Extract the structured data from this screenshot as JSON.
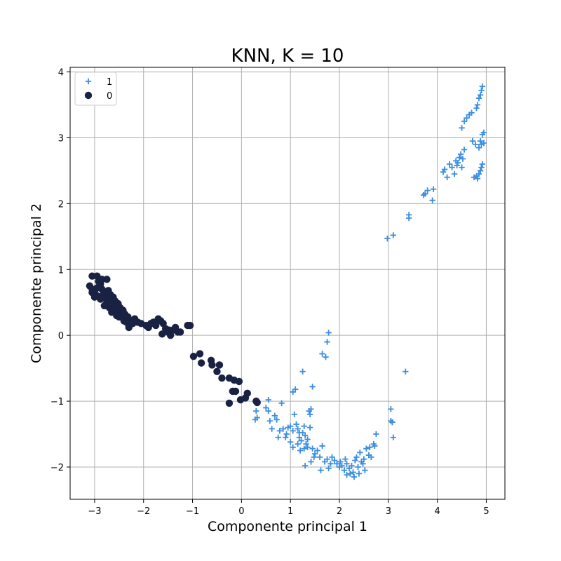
{
  "chart_data": {
    "type": "scatter",
    "title": "KNN, K = 10",
    "xlabel": "Componente principal 1",
    "ylabel": "Componente principal 2",
    "xlim": [
      -3.5,
      5.38
    ],
    "ylim": [
      -2.49,
      4.07
    ],
    "xticks": [
      -3,
      -2,
      -1,
      0,
      1,
      2,
      3,
      4,
      5
    ],
    "yticks": [
      -2,
      -1,
      0,
      1,
      2,
      3,
      4
    ],
    "grid": true,
    "legend_position": "top-left",
    "series": [
      {
        "name": "1",
        "marker": "plus",
        "color": "#3b8ee0",
        "points": [
          [
            1.78,
            0.04
          ],
          [
            1.75,
            -0.1
          ],
          [
            1.65,
            -0.28
          ],
          [
            1.72,
            -0.33
          ],
          [
            1.25,
            -0.55
          ],
          [
            1.45,
            -0.78
          ],
          [
            3.35,
            -0.55
          ],
          [
            1.1,
            -0.82
          ],
          [
            1.05,
            -0.86
          ],
          [
            0.55,
            -0.98
          ],
          [
            0.82,
            -1.03
          ],
          [
            0.3,
            -1.15
          ],
          [
            0.32,
            -1.25
          ],
          [
            0.28,
            -1.28
          ],
          [
            0.5,
            -1.1
          ],
          [
            0.55,
            -1.15
          ],
          [
            0.68,
            -1.22
          ],
          [
            0.72,
            -1.28
          ],
          [
            0.58,
            -1.3
          ],
          [
            0.62,
            -1.42
          ],
          [
            0.78,
            -1.45
          ],
          [
            0.85,
            -1.42
          ],
          [
            0.75,
            -1.55
          ],
          [
            0.92,
            -1.5
          ],
          [
            0.95,
            -1.4
          ],
          [
            1.0,
            -1.38
          ],
          [
            1.05,
            -1.45
          ],
          [
            1.08,
            -1.2
          ],
          [
            1.12,
            -1.35
          ],
          [
            1.15,
            -1.42
          ],
          [
            1.18,
            -1.55
          ],
          [
            1.22,
            -1.6
          ],
          [
            1.25,
            -1.48
          ],
          [
            1.28,
            -1.38
          ],
          [
            1.3,
            -1.52
          ],
          [
            1.32,
            -1.65
          ],
          [
            1.35,
            -1.7
          ],
          [
            1.38,
            -1.15
          ],
          [
            1.42,
            -1.12
          ],
          [
            1.4,
            -1.2
          ],
          [
            1.45,
            -1.72
          ],
          [
            1.48,
            -1.85
          ],
          [
            1.5,
            -1.8
          ],
          [
            1.3,
            -1.98
          ],
          [
            1.42,
            -1.92
          ],
          [
            1.55,
            -1.75
          ],
          [
            1.6,
            -1.85
          ],
          [
            1.65,
            -1.68
          ],
          [
            1.7,
            -1.92
          ],
          [
            1.75,
            -1.88
          ],
          [
            1.82,
            -1.95
          ],
          [
            1.85,
            -1.85
          ],
          [
            1.9,
            -1.9
          ],
          [
            1.95,
            -1.95
          ],
          [
            2.0,
            -2.0
          ],
          [
            2.02,
            -1.92
          ],
          [
            2.05,
            -1.98
          ],
          [
            2.1,
            -2.05
          ],
          [
            2.12,
            -1.88
          ],
          [
            2.15,
            -1.95
          ],
          [
            2.2,
            -2.02
          ],
          [
            2.22,
            -2.1
          ],
          [
            2.25,
            -1.98
          ],
          [
            2.3,
            -2.15
          ],
          [
            2.32,
            -1.9
          ],
          [
            2.35,
            -1.85
          ],
          [
            2.38,
            -2.0
          ],
          [
            2.4,
            -2.1
          ],
          [
            2.42,
            -1.78
          ],
          [
            2.45,
            -1.92
          ],
          [
            2.48,
            -1.95
          ],
          [
            2.5,
            -1.88
          ],
          [
            2.52,
            -2.05
          ],
          [
            2.55,
            -1.72
          ],
          [
            2.6,
            -1.82
          ],
          [
            2.62,
            -1.7
          ],
          [
            2.65,
            -1.85
          ],
          [
            2.7,
            -1.65
          ],
          [
            2.72,
            -1.68
          ],
          [
            2.75,
            -1.5
          ],
          [
            1.05,
            -1.7
          ],
          [
            1.15,
            -1.65
          ],
          [
            1.2,
            -1.75
          ],
          [
            1.62,
            -2.05
          ],
          [
            1.78,
            -2.02
          ],
          [
            2.15,
            -2.12
          ],
          [
            2.28,
            -2.08
          ],
          [
            3.05,
            -1.12
          ],
          [
            3.08,
            -1.32
          ],
          [
            3.1,
            -1.55
          ],
          [
            3.05,
            -1.3
          ],
          [
            1.35,
            -1.58
          ],
          [
            1.4,
            -1.4
          ],
          [
            1.28,
            -1.72
          ],
          [
            1.18,
            -1.48
          ],
          [
            0.9,
            -1.55
          ],
          [
            1.0,
            -1.62
          ],
          [
            2.98,
            1.47
          ],
          [
            3.1,
            1.52
          ],
          [
            3.42,
            1.78
          ],
          [
            3.42,
            1.83
          ],
          [
            3.72,
            2.13
          ],
          [
            3.75,
            2.15
          ],
          [
            3.8,
            2.2
          ],
          [
            3.9,
            2.05
          ],
          [
            3.92,
            2.22
          ],
          [
            4.12,
            2.48
          ],
          [
            4.15,
            2.52
          ],
          [
            4.2,
            2.4
          ],
          [
            4.25,
            2.6
          ],
          [
            4.3,
            2.55
          ],
          [
            4.35,
            2.45
          ],
          [
            4.38,
            2.65
          ],
          [
            4.4,
            2.58
          ],
          [
            4.42,
            2.62
          ],
          [
            4.45,
            2.7
          ],
          [
            4.48,
            2.75
          ],
          [
            4.5,
            2.55
          ],
          [
            4.52,
            2.68
          ],
          [
            4.55,
            2.82
          ],
          [
            4.5,
            3.15
          ],
          [
            4.55,
            3.25
          ],
          [
            4.6,
            3.3
          ],
          [
            4.65,
            3.35
          ],
          [
            4.7,
            3.38
          ],
          [
            4.72,
            2.95
          ],
          [
            4.78,
            2.9
          ],
          [
            4.8,
            3.45
          ],
          [
            4.82,
            3.5
          ],
          [
            4.85,
            3.6
          ],
          [
            4.88,
            3.65
          ],
          [
            4.9,
            3.72
          ],
          [
            4.92,
            3.78
          ],
          [
            4.8,
            2.42
          ],
          [
            4.85,
            2.45
          ],
          [
            4.88,
            2.5
          ],
          [
            4.9,
            2.55
          ],
          [
            4.92,
            2.6
          ],
          [
            4.85,
            2.85
          ],
          [
            4.88,
            2.95
          ],
          [
            4.9,
            2.9
          ],
          [
            4.92,
            3.05
          ],
          [
            4.95,
            3.08
          ],
          [
            4.95,
            2.92
          ],
          [
            4.82,
            2.38
          ],
          [
            4.75,
            2.4
          ]
        ]
      },
      {
        "name": "0",
        "marker": "circle",
        "color": "#1a2244",
        "points": [
          [
            -3.05,
            0.9
          ],
          [
            -2.95,
            0.9
          ],
          [
            -2.85,
            0.85
          ],
          [
            -2.75,
            0.85
          ],
          [
            -3.1,
            0.75
          ],
          [
            -3.05,
            0.7
          ],
          [
            -3.0,
            0.65
          ],
          [
            -2.95,
            0.6
          ],
          [
            -2.9,
            0.75
          ],
          [
            -2.85,
            0.7
          ],
          [
            -2.8,
            0.65
          ],
          [
            -2.75,
            0.6
          ],
          [
            -2.7,
            0.55
          ],
          [
            -2.65,
            0.5
          ],
          [
            -2.6,
            0.45
          ],
          [
            -2.55,
            0.4
          ],
          [
            -2.5,
            0.35
          ],
          [
            -2.45,
            0.3
          ],
          [
            -2.4,
            0.25
          ],
          [
            -2.35,
            0.2
          ],
          [
            -2.3,
            0.15
          ],
          [
            -3.0,
            0.58
          ],
          [
            -2.92,
            0.82
          ],
          [
            -2.88,
            0.78
          ],
          [
            -2.82,
            0.62
          ],
          [
            -2.78,
            0.58
          ],
          [
            -2.72,
            0.68
          ],
          [
            -2.68,
            0.62
          ],
          [
            -2.62,
            0.58
          ],
          [
            -2.58,
            0.52
          ],
          [
            -2.52,
            0.48
          ],
          [
            -2.48,
            0.42
          ],
          [
            -2.42,
            0.38
          ],
          [
            -2.38,
            0.32
          ],
          [
            -2.32,
            0.28
          ],
          [
            -2.28,
            0.22
          ],
          [
            -2.22,
            0.18
          ],
          [
            -2.18,
            0.25
          ],
          [
            -2.12,
            0.2
          ],
          [
            -2.05,
            0.18
          ],
          [
            -1.95,
            0.15
          ],
          [
            -1.9,
            0.12
          ],
          [
            -1.85,
            0.18
          ],
          [
            -1.8,
            0.2
          ],
          [
            -1.75,
            0.15
          ],
          [
            -1.7,
            0.25
          ],
          [
            -1.65,
            0.22
          ],
          [
            -1.6,
            0.18
          ],
          [
            -1.55,
            0.1
          ],
          [
            -1.5,
            0.05
          ],
          [
            -1.45,
            0.0
          ],
          [
            -1.4,
            0.08
          ],
          [
            -1.35,
            0.12
          ],
          [
            -1.3,
            0.05
          ],
          [
            -1.25,
            0.05
          ],
          [
            -1.62,
            0.02
          ],
          [
            -1.48,
            0.08
          ],
          [
            -2.8,
            0.45
          ],
          [
            -2.7,
            0.42
          ],
          [
            -2.6,
            0.38
          ],
          [
            -2.5,
            0.28
          ],
          [
            -2.4,
            0.22
          ],
          [
            -2.3,
            0.12
          ],
          [
            -2.95,
            0.72
          ],
          [
            -3.05,
            0.65
          ],
          [
            -2.88,
            0.55
          ],
          [
            -2.75,
            0.5
          ],
          [
            -2.65,
            0.35
          ],
          [
            -2.55,
            0.3
          ],
          [
            -1.05,
            0.15
          ],
          [
            -1.1,
            0.15
          ],
          [
            -0.98,
            -0.32
          ],
          [
            -0.85,
            -0.28
          ],
          [
            -0.82,
            -0.42
          ],
          [
            -0.62,
            -0.38
          ],
          [
            -0.6,
            -0.45
          ],
          [
            -0.5,
            -0.55
          ],
          [
            -0.45,
            -0.45
          ],
          [
            -0.4,
            -0.65
          ],
          [
            -0.25,
            -0.65
          ],
          [
            -0.25,
            -1.03
          ],
          [
            -0.15,
            -0.68
          ],
          [
            -0.18,
            -0.85
          ],
          [
            -0.12,
            -0.85
          ],
          [
            -0.05,
            -0.7
          ],
          [
            -0.02,
            -0.98
          ],
          [
            0.08,
            -0.95
          ],
          [
            0.12,
            -0.88
          ],
          [
            0.3,
            -1.0
          ],
          [
            0.32,
            -1.02
          ]
        ]
      }
    ]
  }
}
